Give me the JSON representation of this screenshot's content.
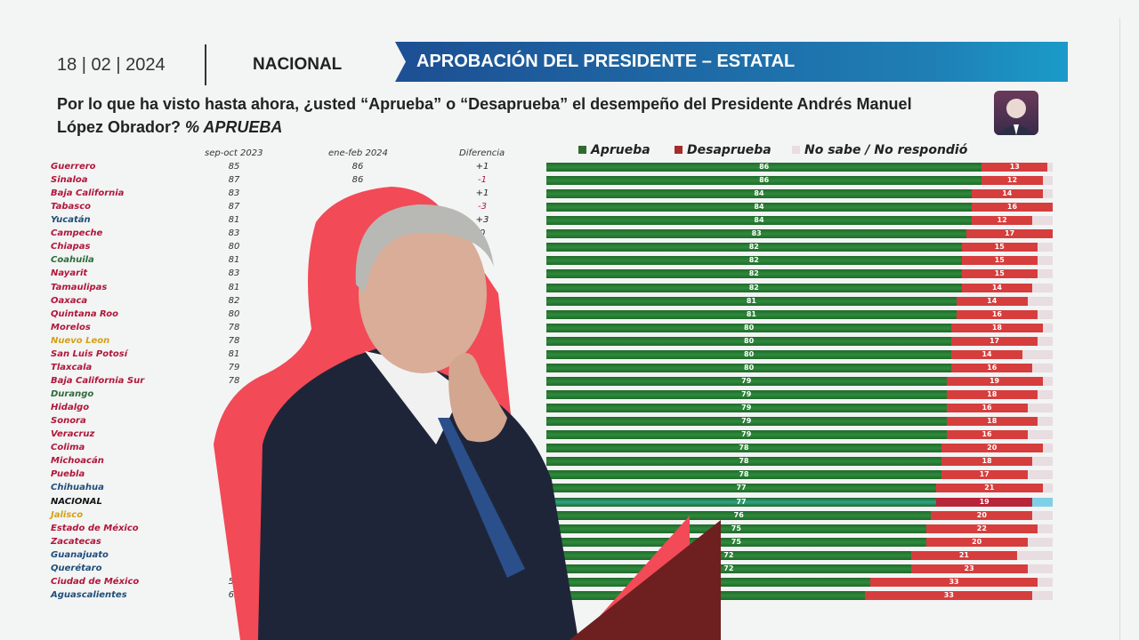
{
  "header": {
    "date": "18 | 02 | 2024",
    "scope": "NACIONAL",
    "banner": "APROBACIÓN DEL PRESIDENTE – ESTATAL"
  },
  "question": {
    "text": "Por lo que ha visto hasta ahora, ¿usted “Aprueba” o “Desaprueba” el desempeño del Presidente Andrés Manuel López Obrador?",
    "suffix": "% APRUEBA"
  },
  "table": {
    "headers": [
      "sep-oct 2023",
      "ene-feb 2024",
      "Diferencia"
    ]
  },
  "chart_data": {
    "type": "bar",
    "stacked": true,
    "orientation": "horizontal",
    "legend": [
      "Aprueba",
      "Desaprueba",
      "No sabe / No respondió"
    ],
    "legend_position": "top",
    "colors": {
      "aprueba": "#2f8a3c",
      "desaprueba": "#d63d3d",
      "nacional_aprueba": "#2fa58a",
      "nacional_desaprueba": "#b8243a",
      "no_sabe": "#e8dde0",
      "no_sabe_nacional": "#7fd0e6"
    },
    "xlim": [
      0,
      100
    ],
    "categories": [
      "Guerrero",
      "Sinaloa",
      "Baja California",
      "Tabasco",
      "Yucatán",
      "Campeche",
      "Chiapas",
      "Coahuila",
      "Nayarit",
      "Tamaulipas",
      "Oaxaca",
      "Quintana Roo",
      "Morelos",
      "Nuevo Leon",
      "San Luis Potosí",
      "Tlaxcala",
      "Baja California Sur",
      "Durango",
      "Hidalgo",
      "Sonora",
      "Veracruz",
      "Colima",
      "Michoacán",
      "Puebla",
      "Chihuahua",
      "NACIONAL",
      "Jalisco",
      "Estado de México",
      "Zacatecas",
      "Guanajuato",
      "Querétaro",
      "Ciudad de México",
      "Aguascalientes"
    ],
    "category_colors": [
      "#b0173a",
      "#b0173a",
      "#b0173a",
      "#b0173a",
      "#1f4e79",
      "#b0173a",
      "#b0173a",
      "#2e6b3a",
      "#b0173a",
      "#b0173a",
      "#b0173a",
      "#b0173a",
      "#b0173a",
      "#d4a017",
      "#b0173a",
      "#b0173a",
      "#b0173a",
      "#2e6b3a",
      "#b0173a",
      "#b0173a",
      "#b0173a",
      "#b0173a",
      "#b0173a",
      "#b0173a",
      "#1f4e79",
      "#111111",
      "#d4a017",
      "#b0173a",
      "#b0173a",
      "#1f4e79",
      "#1f4e79",
      "#b0173a",
      "#1f4e79"
    ],
    "series": [
      {
        "name": "Aprueba",
        "values": [
          86,
          86,
          84,
          84,
          84,
          83,
          82,
          82,
          82,
          82,
          81,
          81,
          80,
          80,
          80,
          80,
          79,
          79,
          79,
          79,
          79,
          78,
          78,
          78,
          77,
          77,
          76,
          75,
          75,
          72,
          72,
          64,
          63
        ]
      },
      {
        "name": "Desaprueba",
        "values": [
          13,
          12,
          14,
          16,
          12,
          17,
          15,
          15,
          15,
          14,
          14,
          16,
          18,
          17,
          14,
          16,
          19,
          18,
          16,
          18,
          16,
          20,
          18,
          17,
          21,
          19,
          20,
          22,
          20,
          21,
          23,
          33,
          33
        ]
      }
    ],
    "sep_oct_2023": [
      85,
      87,
      83,
      87,
      81,
      83,
      80,
      81,
      83,
      81,
      82,
      80,
      78,
      78,
      81,
      79,
      78,
      null,
      null,
      null,
      null,
      null,
      null,
      null,
      null,
      null,
      null,
      null,
      null,
      null,
      null,
      59,
      63
    ],
    "ene_feb_2024": [
      86,
      86,
      null,
      null,
      null,
      null,
      null,
      null,
      null,
      null,
      null,
      null,
      null,
      null,
      null,
      null,
      null,
      null,
      null,
      null,
      null,
      null,
      null,
      null,
      null,
      null,
      null,
      null,
      null,
      null,
      null,
      null,
      null
    ],
    "diferencia": [
      "+1",
      "-1",
      "+1",
      "-3",
      "+3",
      "0",
      null,
      null,
      null,
      null,
      null,
      null,
      null,
      null,
      null,
      null,
      null,
      null,
      null,
      null,
      null,
      null,
      null,
      null,
      null,
      null,
      null,
      null,
      null,
      null,
      null,
      null,
      null
    ]
  }
}
